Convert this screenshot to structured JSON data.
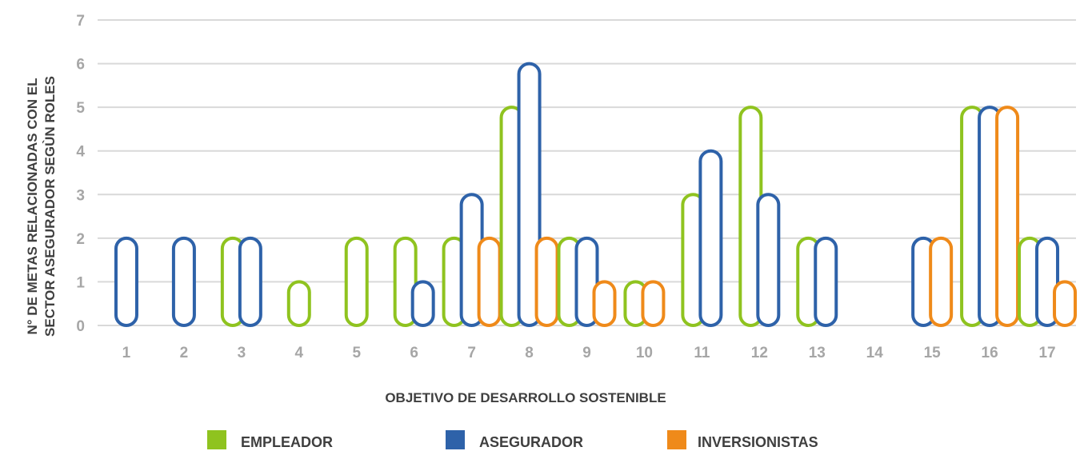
{
  "chart_data": {
    "type": "bar",
    "xlabel": "OBJETIVO DE DESARROLLO SOSTENIBLE",
    "ylabel_lines": [
      "N° DE METAS RELACIONADAS CON  EL",
      "SECTOR ASEGURADOR SEGÙN ROLES"
    ],
    "ylim": [
      0,
      7
    ],
    "yticks": [
      "0",
      "1",
      "2",
      "3",
      "4",
      "5",
      "6",
      "7"
    ],
    "grid": true,
    "legend_position": "bottom",
    "categories": [
      "1",
      "2",
      "3",
      "4",
      "5",
      "6",
      "7",
      "8",
      "9",
      "10",
      "11",
      "12",
      "13",
      "14",
      "15",
      "16",
      "17"
    ],
    "series": [
      {
        "name": "EMPLEADOR",
        "color": "#8fc31f",
        "values": [
          0,
          0,
          2,
          1,
          2,
          2,
          2,
          5,
          2,
          1,
          3,
          5,
          2,
          0,
          0,
          5,
          2
        ]
      },
      {
        "name": "ASEGURADOR",
        "color": "#2e62a9",
        "values": [
          2,
          2,
          2,
          0,
          0,
          1,
          3,
          6,
          2,
          0,
          4,
          3,
          2,
          0,
          2,
          5,
          2
        ]
      },
      {
        "name": "INVERSIONISTAS",
        "color": "#ef8a1a",
        "values": [
          0,
          0,
          0,
          0,
          0,
          0,
          2,
          2,
          1,
          1,
          0,
          0,
          0,
          0,
          2,
          5,
          1
        ]
      }
    ]
  }
}
